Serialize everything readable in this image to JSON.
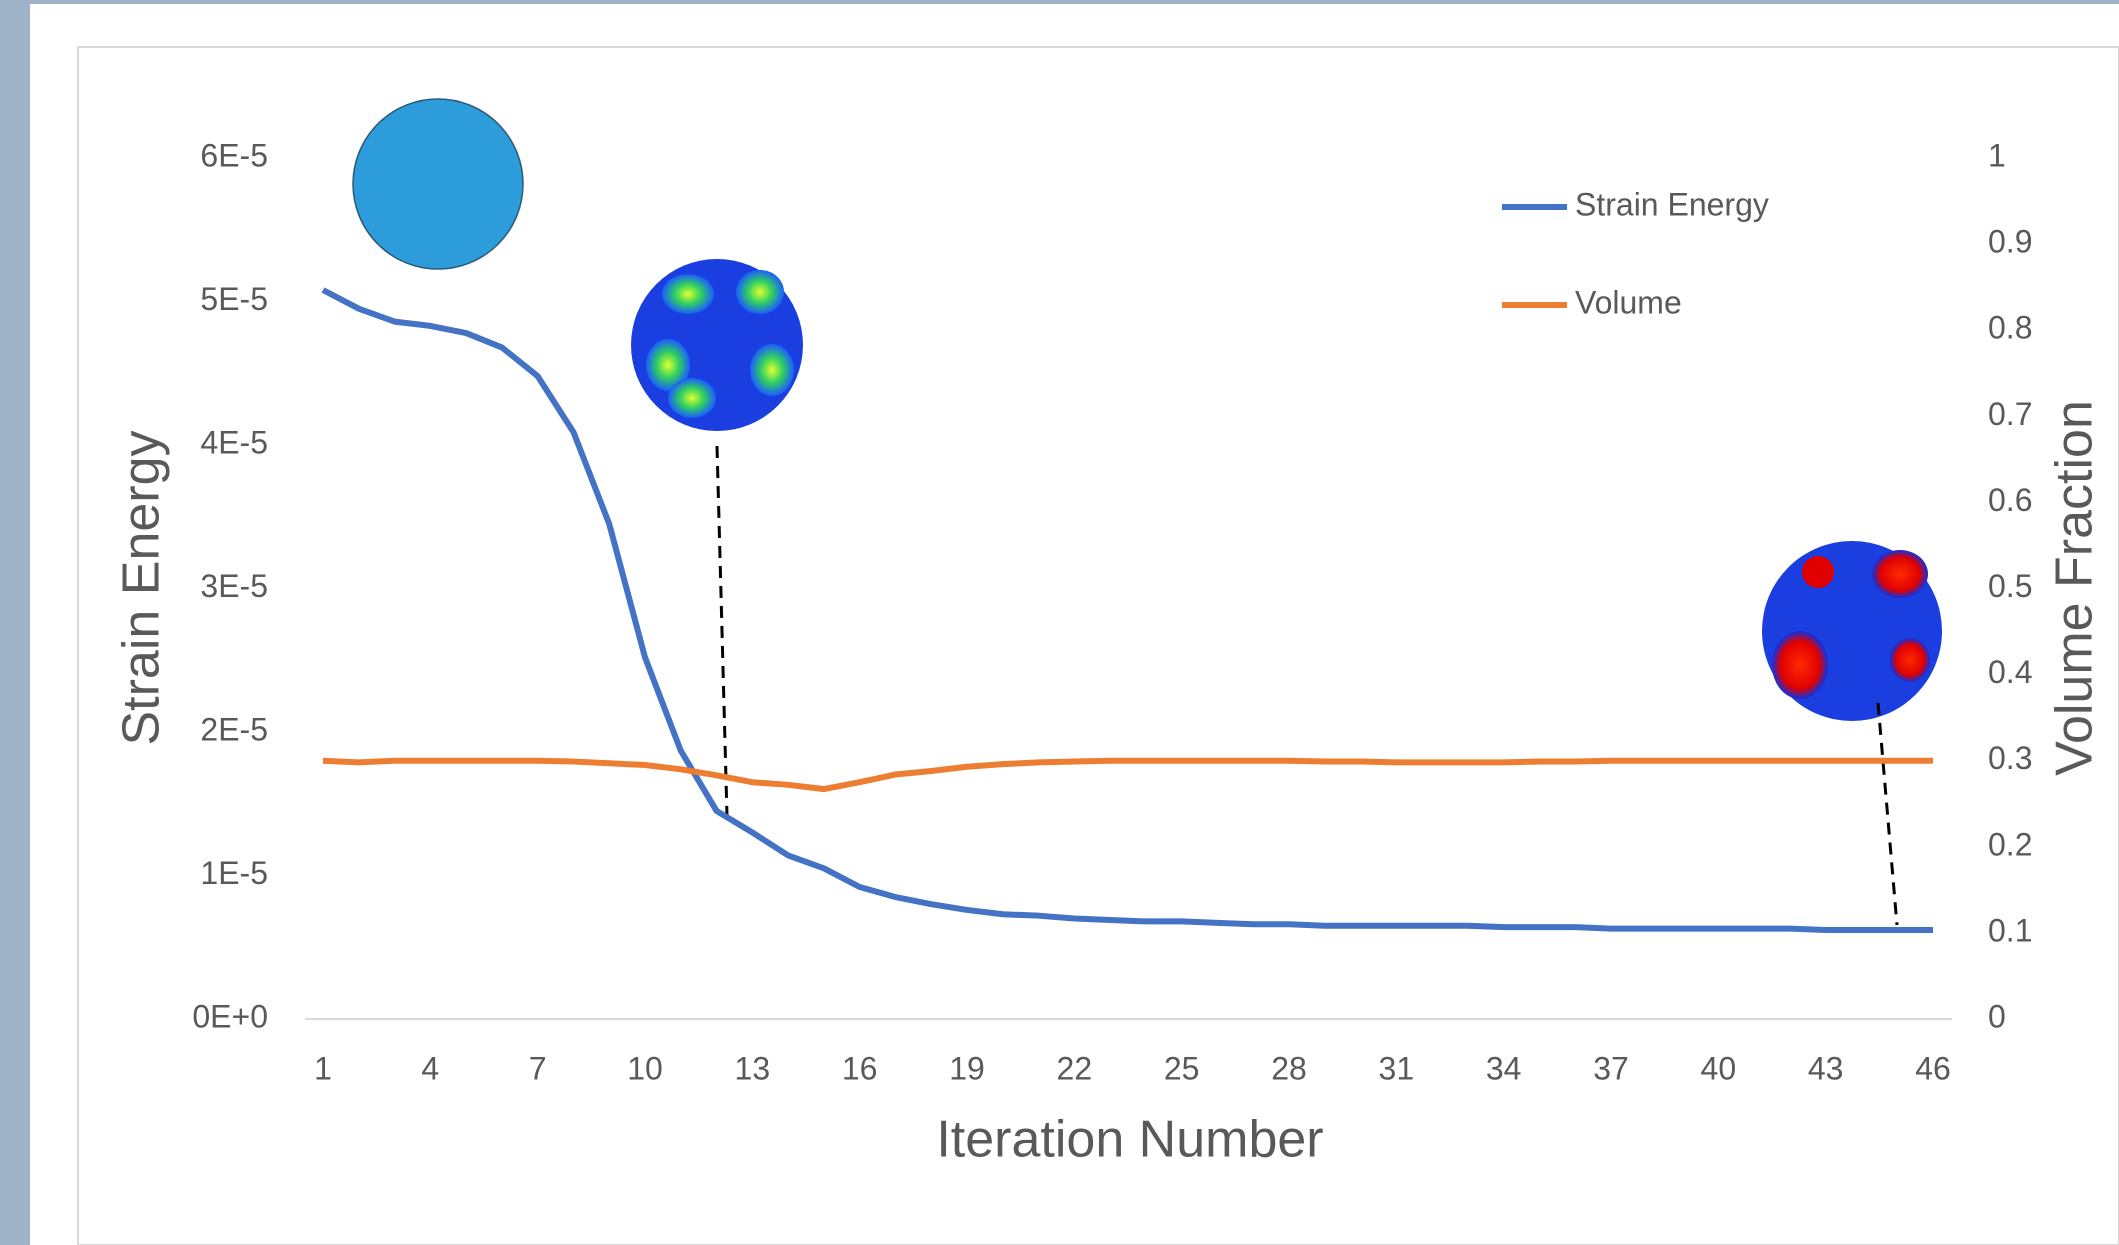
{
  "chart_data": {
    "type": "line",
    "x_label": "Iteration Number",
    "y_label": "Strain Energy",
    "y2_label": "Volume Fraction",
    "x": [
      1,
      2,
      3,
      4,
      5,
      6,
      7,
      8,
      9,
      10,
      11,
      12,
      13,
      14,
      15,
      16,
      17,
      18,
      19,
      20,
      21,
      22,
      23,
      24,
      25,
      26,
      27,
      28,
      29,
      30,
      31,
      32,
      33,
      34,
      35,
      36,
      37,
      38,
      39,
      40,
      41,
      42,
      43,
      44,
      45,
      46
    ],
    "xlim": [
      1,
      46
    ],
    "xticks": [
      1,
      4,
      7,
      10,
      13,
      16,
      19,
      22,
      25,
      28,
      31,
      34,
      37,
      40,
      43,
      46
    ],
    "ylim": [
      0,
      6e-05
    ],
    "yticks": [
      {
        "value": 0,
        "label": "0E+0"
      },
      {
        "value": 1e-05,
        "label": "1E-5"
      },
      {
        "value": 2e-05,
        "label": "2E-5"
      },
      {
        "value": 3e-05,
        "label": "3E-5"
      },
      {
        "value": 4e-05,
        "label": "4E-5"
      },
      {
        "value": 5e-05,
        "label": "5E-5"
      },
      {
        "value": 6e-05,
        "label": "6E-5"
      }
    ],
    "y2lim": [
      0,
      1
    ],
    "y2ticks": [
      0,
      0.1,
      0.2,
      0.3,
      0.4,
      0.5,
      0.6,
      0.7,
      0.8,
      0.9,
      1
    ],
    "grid": false,
    "legend": "upper right",
    "series": [
      {
        "name": "Strain Energy",
        "color": "#4472c4",
        "values": [
          5.08e-05,
          4.95e-05,
          4.86e-05,
          4.83e-05,
          4.78e-05,
          4.68e-05,
          4.48e-05,
          4.09e-05,
          3.45e-05,
          2.52e-05,
          1.87e-05,
          1.45e-05,
          1.3e-05,
          1.14e-05,
          1.05e-05,
          9.2e-06,
          8.5e-06,
          8e-06,
          7.6e-06,
          7.3e-06,
          7.2e-06,
          7e-06,
          6.9e-06,
          6.8e-06,
          6.8e-06,
          6.7e-06,
          6.6e-06,
          6.6e-06,
          6.5e-06,
          6.5e-06,
          6.5e-06,
          6.5e-06,
          6.5e-06,
          6.4e-06,
          6.4e-06,
          6.4e-06,
          6.3e-06,
          6.3e-06,
          6.3e-06,
          6.3e-06,
          6.3e-06,
          6.3e-06,
          6.2e-06,
          6.2e-06,
          6.2e-06,
          6.2e-06
        ]
      },
      {
        "name": "Volume",
        "color": "#ed7d31",
        "axis": "y2",
        "values": [
          0.3,
          0.298,
          0.3,
          0.3,
          0.3,
          0.3,
          0.3,
          0.299,
          0.297,
          0.295,
          0.29,
          0.283,
          0.275,
          0.272,
          0.267,
          0.275,
          0.284,
          0.288,
          0.293,
          0.296,
          0.298,
          0.299,
          0.3,
          0.3,
          0.3,
          0.3,
          0.3,
          0.3,
          0.299,
          0.299,
          0.298,
          0.298,
          0.298,
          0.298,
          0.299,
          0.299,
          0.3,
          0.3,
          0.3,
          0.3,
          0.3,
          0.3,
          0.3,
          0.3,
          0.3,
          0.3
        ]
      }
    ]
  }
}
